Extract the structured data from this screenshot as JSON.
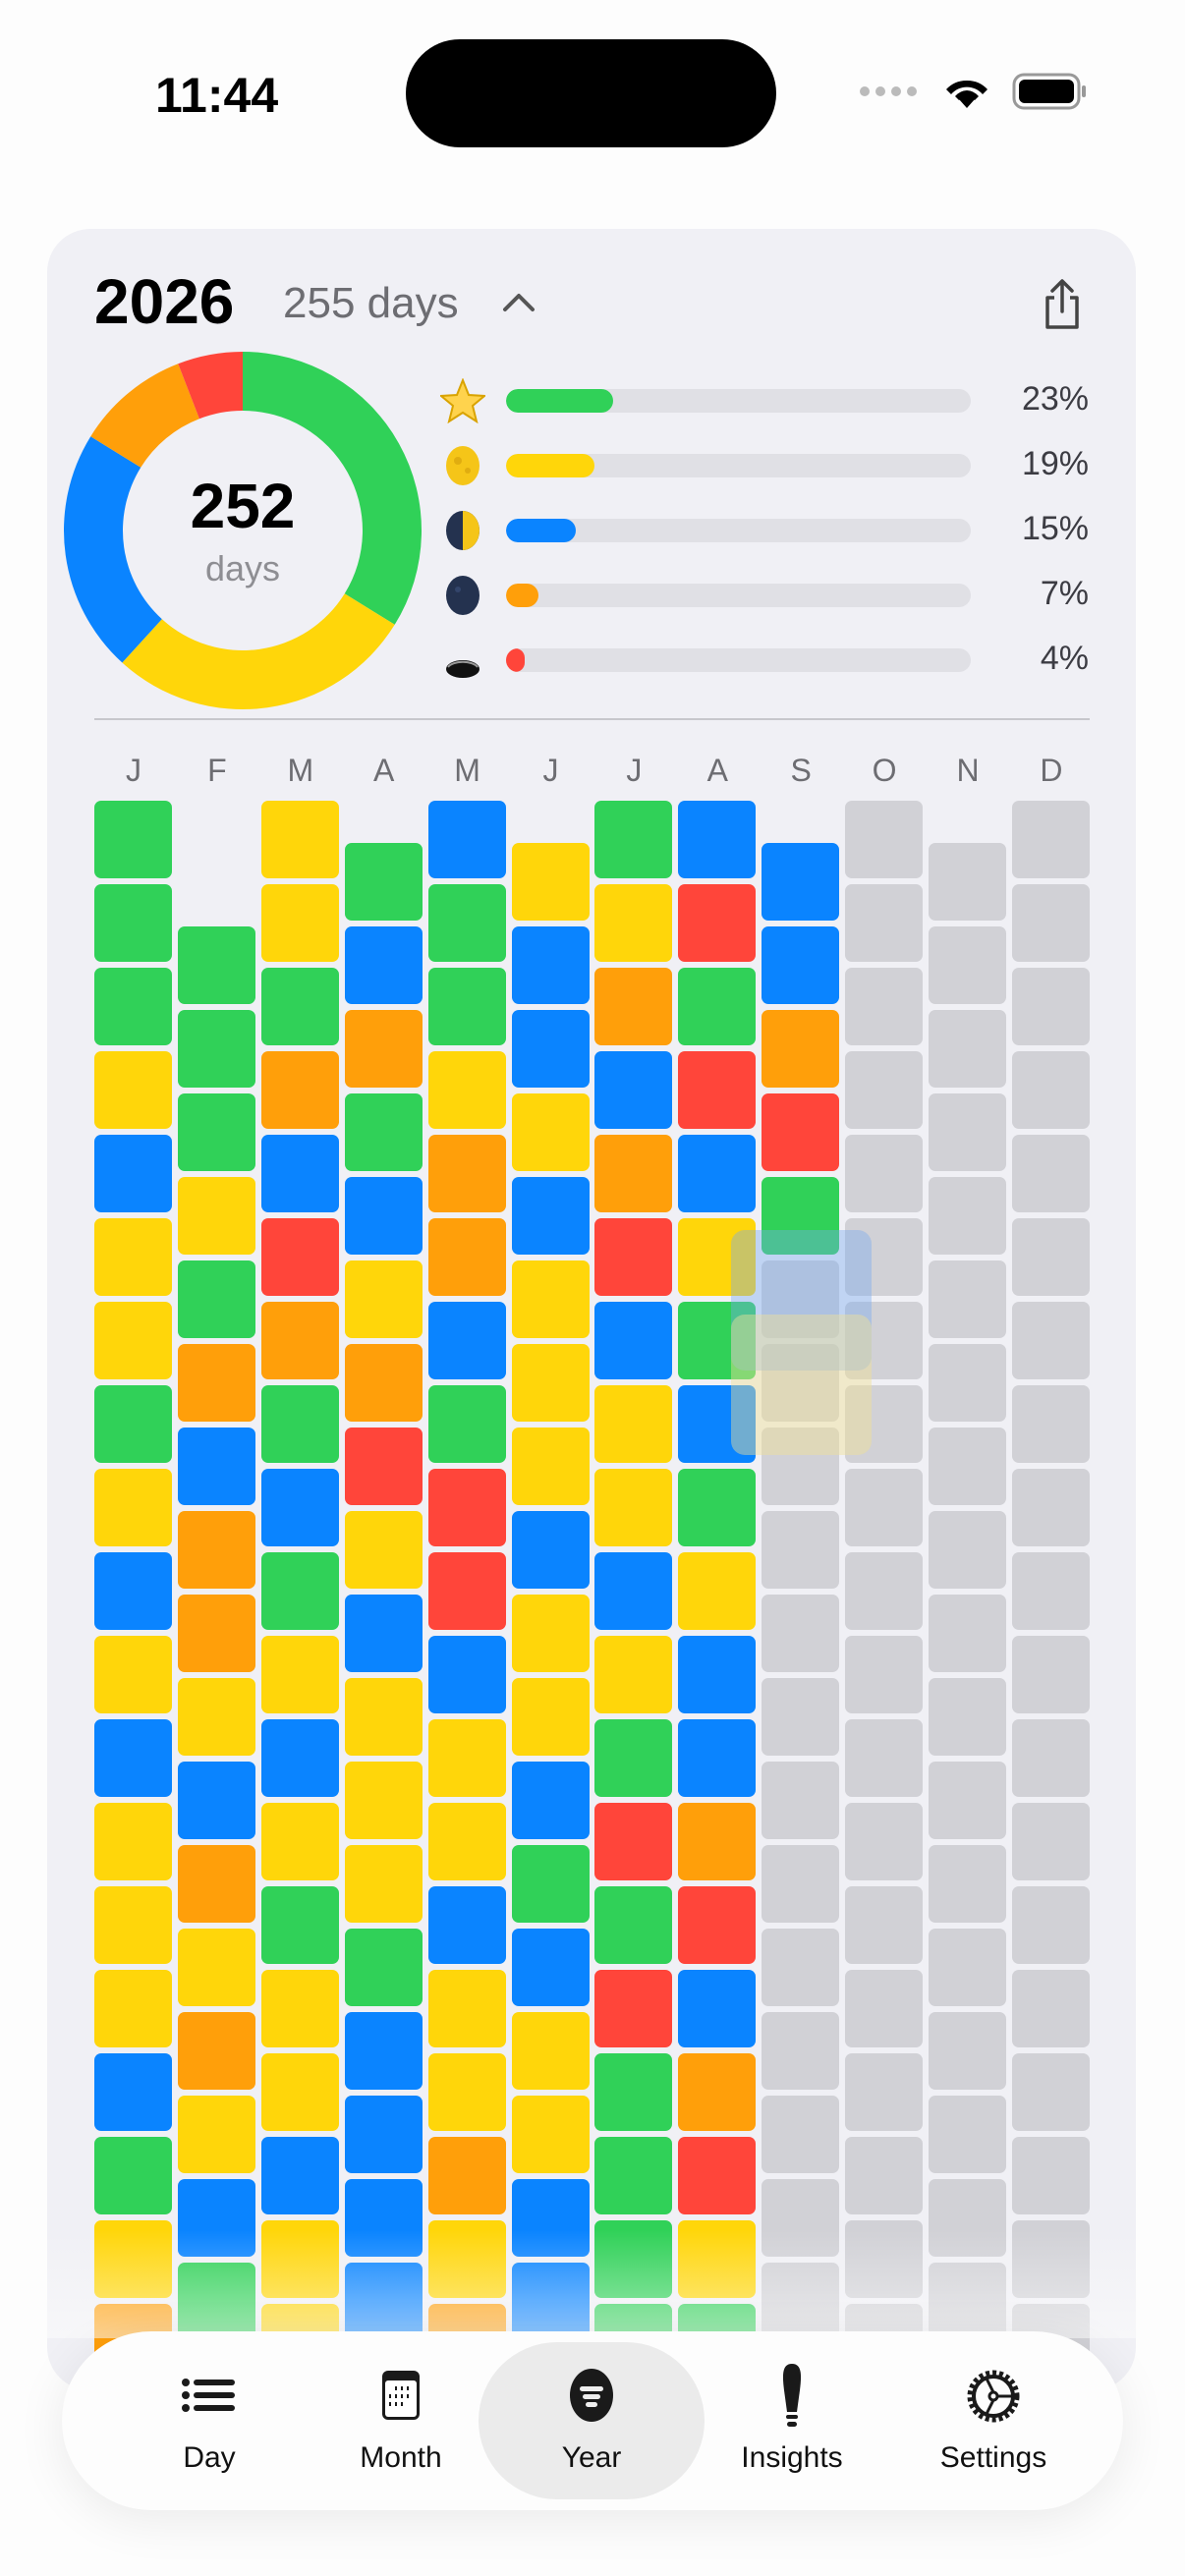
{
  "status_bar": {
    "time": "11:44"
  },
  "header": {
    "year": "2026",
    "days_label": "255 days",
    "collapse_icon": "chevron-up-icon",
    "share_icon": "share-icon"
  },
  "summary": {
    "total": "252",
    "total_unit": "days",
    "moods": [
      {
        "icon": "star-icon",
        "color": "#30d158",
        "percent": 23,
        "label": "23%"
      },
      {
        "icon": "full-moon-icon",
        "color": "#ffd60a",
        "percent": 19,
        "label": "19%"
      },
      {
        "icon": "half-moon-icon",
        "color": "#0a84ff",
        "percent": 15,
        "label": "15%"
      },
      {
        "icon": "new-moon-icon",
        "color": "#ff9f0a",
        "percent": 7,
        "label": "7%"
      },
      {
        "icon": "hole-icon",
        "color": "#ff453a",
        "percent": 4,
        "label": "4%"
      }
    ]
  },
  "colors": {
    "G": "#30d158",
    "Y": "#ffd60a",
    "B": "#0a84ff",
    "O": "#ff9f0a",
    "R": "#ff453a",
    "E": "#d1d1d6"
  },
  "grid": {
    "months": [
      {
        "label": "J",
        "days": "GGGYBYYGYBYBYYYBGYO"
      },
      {
        "label": "F",
        "days": "GGGYGOBOOYBOYOYBG"
      },
      {
        "label": "M",
        "days": "YYGOBROGBGYBYGYYBYY"
      },
      {
        "label": "A",
        "days": "GBOGBYORYBYYYGBBBB"
      },
      {
        "label": "M",
        "days": "BGGYOOBGRRBYYBYYOYO"
      },
      {
        "label": "J",
        "days": "YBBYBYYYBYYBGBYYBB"
      },
      {
        "label": "J",
        "days": "GYOBORBYYBYGRGRGGGG"
      },
      {
        "label": "A",
        "days": "BRGRBYGBGYBBORBORYG"
      },
      {
        "label": "S",
        "days": "BBORGEEEEEEEEEEEEE"
      },
      {
        "label": "O",
        "days": "EEEEEEEEEEEEEEEEEEE"
      },
      {
        "label": "N",
        "days": "EEEEEEEEEEEEEEEEEE"
      },
      {
        "label": "D",
        "days": "EEEEEEEEEEEEEEEEEEE"
      }
    ]
  },
  "tabs": [
    {
      "label": "Day",
      "icon": "list-icon",
      "selected": false
    },
    {
      "label": "Month",
      "icon": "calendar-icon",
      "selected": false
    },
    {
      "label": "Year",
      "icon": "year-filter-icon",
      "selected": true
    },
    {
      "label": "Insights",
      "icon": "lightbulb-icon",
      "selected": false
    },
    {
      "label": "Settings",
      "icon": "gear-icon",
      "selected": false
    }
  ]
}
